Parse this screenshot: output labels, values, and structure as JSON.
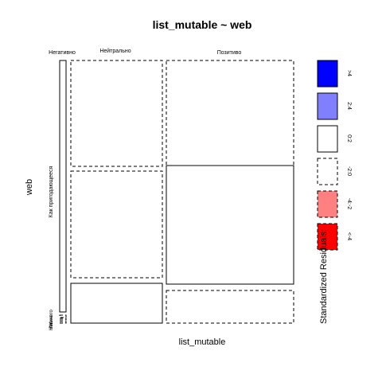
{
  "chart_data": {
    "type": "mosaic",
    "title": "list_mutable ~ web",
    "xlabel": "list_mutable",
    "ylabel": "web",
    "x_categories": [
      "Негативно",
      "Нейтрально",
      "Позитиво"
    ],
    "y_categories": [
      "Как пригодающееся",
      "Нет",
      "Иначе",
      "Ничего"
    ],
    "y_labels_visible": [
      "Как пригодающееся",
      "Ничего",
      "Иначе",
      "Нет"
    ],
    "legend": {
      "title": "Standardized Residuals:",
      "position": "right",
      "items": [
        {
          "label": ">4",
          "color": "#0000ff",
          "border": "solid"
        },
        {
          "label": "2:4",
          "color": "#8080ff",
          "border": "solid"
        },
        {
          "label": "0:2",
          "color": "#ffffff",
          "border": "solid"
        },
        {
          "label": "-2:0",
          "color": "#ffffff",
          "border": "dashed"
        },
        {
          "label": "-4:-2",
          "color": "#ff8080",
          "border": "dashed"
        },
        {
          "label": "<-4",
          "color": "#ff0000",
          "border": "dashed"
        }
      ]
    },
    "column_shares": [
      0.03,
      0.38,
      0.59
    ],
    "cells": [
      {
        "x": "Негативно",
        "y": "Как пригодающееся",
        "share": 0.97,
        "residual_class": "0:2"
      },
      {
        "x": "Негативно",
        "y": "Нет",
        "share": 0.01,
        "residual_class": "-2:0"
      },
      {
        "x": "Негативно",
        "y": "Иначе",
        "share": 0.01,
        "residual_class": "-2:0"
      },
      {
        "x": "Негативно",
        "y": "Ничего",
        "share": 0.01,
        "residual_class": "-2:0"
      },
      {
        "x": "Нейтрально",
        "y": "Как пригодающееся",
        "share": 0.42,
        "residual_class": "-2:0"
      },
      {
        "x": "Нейтрально",
        "y": "Нет",
        "share": 0.42,
        "residual_class": "-2:0"
      },
      {
        "x": "Нейтрально",
        "y": "Иначе",
        "share": 0.16,
        "residual_class": "0:2"
      },
      {
        "x": "Позитиво",
        "y": "Как пригодающееся",
        "share": 0.42,
        "residual_class": "-2:0"
      },
      {
        "x": "Позитиво",
        "y": "Нет",
        "share": 0.46,
        "residual_class": "0:2"
      },
      {
        "x": "Позитиво",
        "y": "Иначе",
        "share": 0.12,
        "residual_class": "-2:0"
      }
    ]
  }
}
